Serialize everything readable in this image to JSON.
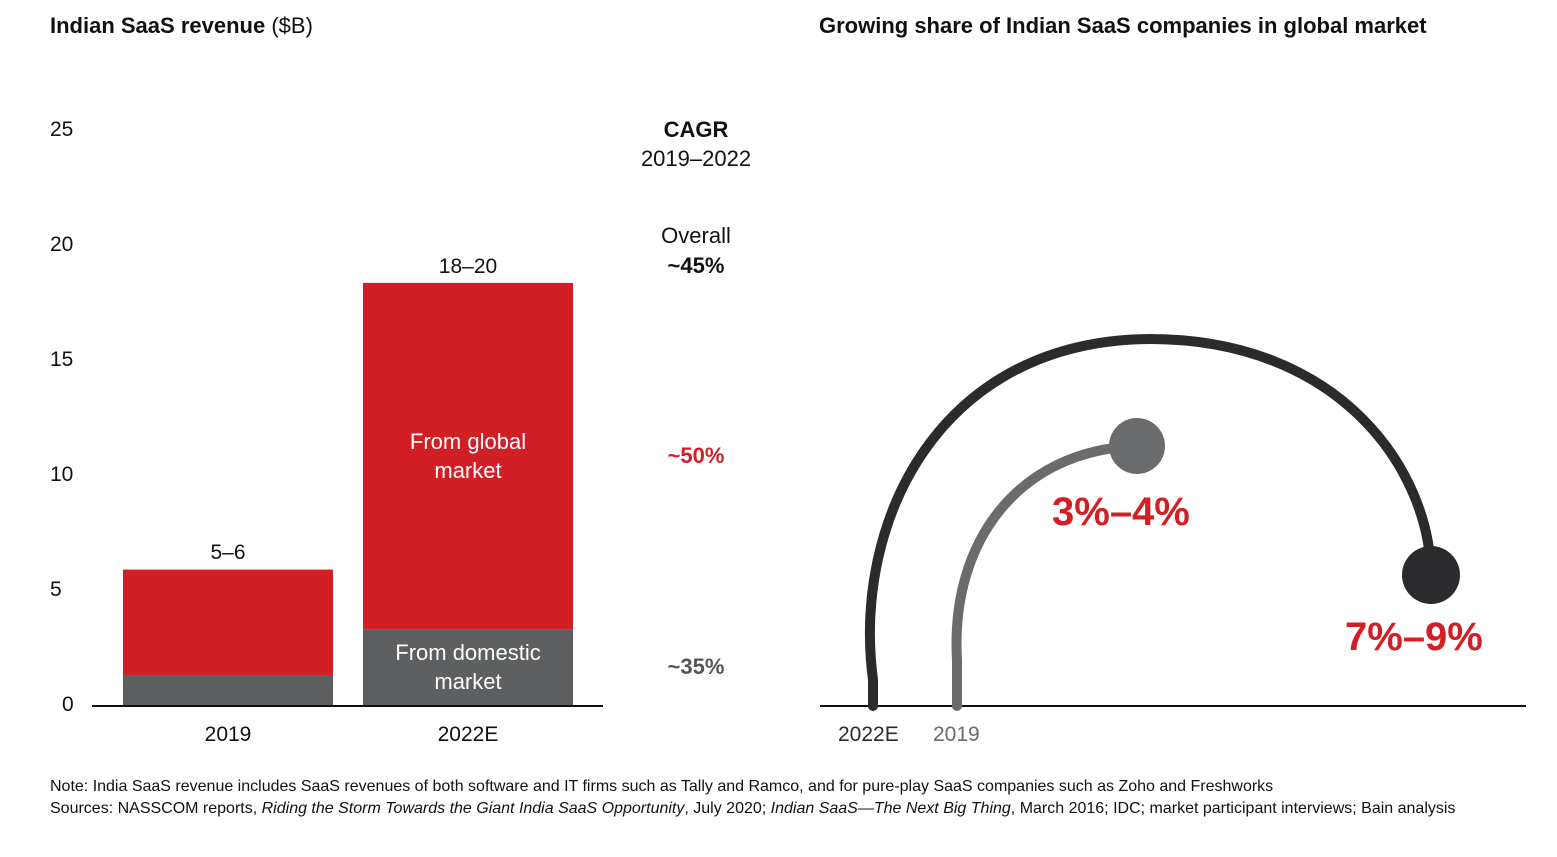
{
  "left_title": {
    "bold": "Indian SaaS revenue",
    "unit": "($B)"
  },
  "right_title": "Growing share of Indian SaaS companies in global market",
  "chart_data": [
    {
      "type": "bar",
      "stacked": true,
      "title": "Indian SaaS revenue ($B)",
      "categories": [
        "2019",
        "2022E"
      ],
      "ylim": [
        0,
        25
      ],
      "yticks": [
        "0",
        "5",
        "10",
        "15",
        "20",
        "25"
      ],
      "series": [
        {
          "name": "From domestic market",
          "values": [
            1.3,
            3.3
          ],
          "color": "#5d5f60"
        },
        {
          "name": "From global market",
          "values": [
            4.6,
            15.0
          ],
          "color": "#d21f26"
        }
      ],
      "totals": [
        "5–6",
        "18–20"
      ],
      "segment_labels": {
        "global": "From global market",
        "domestic": "From domestic market"
      },
      "cagr": {
        "heading": "CAGR",
        "period": "2019–2022",
        "overall_label": "Overall",
        "overall": "~45%",
        "global": "~50%",
        "domestic": "~35%"
      }
    },
    {
      "type": "arc",
      "title": "Growing share of Indian SaaS companies in global market",
      "series": [
        {
          "name": "2022E",
          "value": "7%–9%",
          "color": "#2b2b2d"
        },
        {
          "name": "2019",
          "value": "3%–4%",
          "color": "#6a6b6c"
        }
      ]
    }
  ],
  "note": "Note: India SaaS revenue includes SaaS revenues of both software and IT firms such as Tally and Ramco, and for pure-play SaaS companies such as Zoho and Freshworks",
  "sources": {
    "prefix": "Sources: NASSCOM reports, ",
    "title1": "Riding the Storm Towards the Giant India SaaS Opportunity",
    "mid1": ", July 2020; ",
    "title2": "Indian SaaS—The Next Big Thing",
    "rest": ", March 2016; IDC; market participant interviews; Bain analysis"
  }
}
